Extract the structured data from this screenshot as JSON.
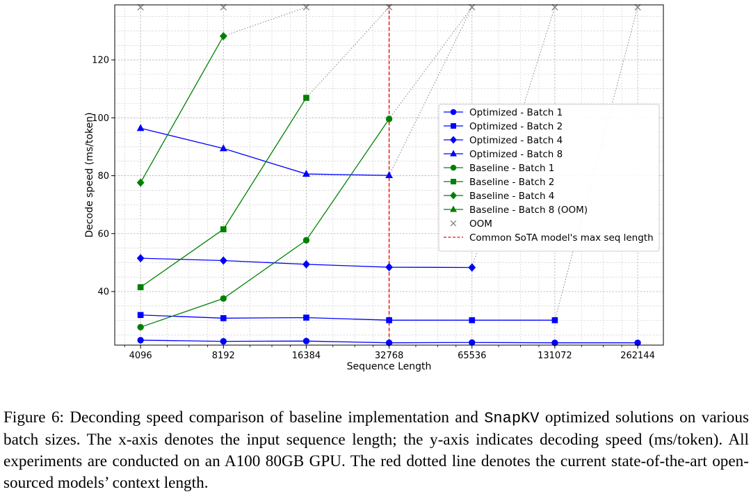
{
  "chart_data": {
    "type": "line",
    "xlabel": "Sequence Length",
    "ylabel": "Decode speed (ms/token)",
    "x_scale": "log2",
    "x_ticks": [
      4096,
      8192,
      16384,
      32768,
      65536,
      131072,
      262144
    ],
    "x_tick_labels": [
      "4096",
      "8192",
      "16384",
      "32768",
      "65536",
      "131072",
      "262144"
    ],
    "y_ticks": [
      40,
      60,
      80,
      100,
      120
    ],
    "y_tick_labels": [
      "40",
      "60",
      "80",
      "100",
      "120"
    ],
    "xlim": [
      3300,
      325000
    ],
    "ylim": [
      21.5,
      139
    ],
    "grid": true,
    "legend_position": "center-right",
    "series": [
      {
        "name": "Optimized - Batch 1",
        "color": "#0000ff",
        "marker": "circle",
        "style": "solid",
        "x": [
          4096,
          8192,
          16384,
          32768,
          65536,
          131072,
          262144
        ],
        "y": [
          23.2,
          22.8,
          22.9,
          22.3,
          22.4,
          22.3,
          22.3
        ]
      },
      {
        "name": "Optimized - Batch 2",
        "color": "#0000ff",
        "marker": "square",
        "style": "solid",
        "x": [
          4096,
          8192,
          16384,
          32768,
          65536,
          131072
        ],
        "y": [
          31.9,
          30.8,
          31.0,
          30.1,
          30.1,
          30.1
        ]
      },
      {
        "name": "Optimized - Batch 4",
        "color": "#0000ff",
        "marker": "diamond",
        "style": "solid",
        "x": [
          4096,
          8192,
          16384,
          32768,
          65536
        ],
        "y": [
          51.5,
          50.7,
          49.4,
          48.4,
          48.3
        ]
      },
      {
        "name": "Optimized - Batch 8",
        "color": "#0000ff",
        "marker": "triangle",
        "style": "solid",
        "x": [
          4096,
          8192,
          16384,
          32768
        ],
        "y": [
          96.4,
          89.4,
          80.6,
          80.1
        ]
      },
      {
        "name": "Baseline - Batch 1",
        "color": "#008000",
        "marker": "circle",
        "style": "solid",
        "x": [
          4096,
          8192,
          16384,
          32768
        ],
        "y": [
          27.7,
          37.6,
          57.7,
          99.6
        ]
      },
      {
        "name": "Baseline - Batch 2",
        "color": "#008000",
        "marker": "square",
        "style": "solid",
        "x": [
          4096,
          8192,
          16384
        ],
        "y": [
          41.5,
          61.5,
          106.9
        ]
      },
      {
        "name": "Baseline - Batch 4",
        "color": "#008000",
        "marker": "diamond",
        "style": "solid",
        "x": [
          4096,
          8192
        ],
        "y": [
          77.6,
          128.2
        ]
      },
      {
        "name": "Baseline - Batch 8 (OOM)",
        "color": "#008000",
        "marker": "triangle",
        "style": "solid",
        "x": [],
        "y": []
      },
      {
        "name": "OOM",
        "color": "#808080",
        "marker": "x",
        "style": "none",
        "x": [
          4096,
          8192,
          16384,
          32768,
          65536,
          131072,
          262144
        ],
        "y": [
          138.2,
          138.2,
          138.2,
          138.2,
          138.2,
          138.2,
          138.2
        ]
      }
    ],
    "oom_connectors": [
      {
        "from": [
          8192,
          128.2
        ],
        "to": [
          16384,
          138.2
        ]
      },
      {
        "from": [
          16384,
          106.9
        ],
        "to": [
          32768,
          138.2
        ]
      },
      {
        "from": [
          32768,
          99.6
        ],
        "to": [
          65536,
          138.2
        ]
      },
      {
        "from": [
          32768,
          80.1
        ],
        "to": [
          65536,
          138.2
        ]
      },
      {
        "from": [
          65536,
          48.3
        ],
        "to": [
          131072,
          138.2
        ]
      },
      {
        "from": [
          131072,
          30.1
        ],
        "to": [
          262144,
          138.2
        ]
      }
    ],
    "vline": {
      "x": 32768,
      "color": "#ff0000",
      "style": "dashed",
      "name": "Common SoTA model's max seq length"
    },
    "legend": [
      {
        "label": "Optimized - Batch 1",
        "color": "#0000ff",
        "marker": "circle",
        "line": "solid"
      },
      {
        "label": "Optimized - Batch 2",
        "color": "#0000ff",
        "marker": "square",
        "line": "solid"
      },
      {
        "label": "Optimized - Batch 4",
        "color": "#0000ff",
        "marker": "diamond",
        "line": "solid"
      },
      {
        "label": "Optimized - Batch 8",
        "color": "#0000ff",
        "marker": "triangle",
        "line": "solid"
      },
      {
        "label": "Baseline - Batch 1",
        "color": "#008000",
        "marker": "circle",
        "line": "solid"
      },
      {
        "label": "Baseline - Batch 2",
        "color": "#008000",
        "marker": "square",
        "line": "solid"
      },
      {
        "label": "Baseline - Batch 4",
        "color": "#008000",
        "marker": "diamond",
        "line": "solid"
      },
      {
        "label": "Baseline - Batch 8 (OOM)",
        "color": "#008000",
        "marker": "triangle",
        "line": "solid"
      },
      {
        "label": "OOM",
        "color": "#808080",
        "marker": "x",
        "line": "none"
      },
      {
        "label": "Common SoTA model's max seq length",
        "color": "#ff0000",
        "marker": "none",
        "line": "dashed"
      }
    ]
  },
  "caption": {
    "part1": "Figure 6: Deconding speed comparison of baseline implementation and ",
    "code": "SnapKV",
    "part2": " optimized solutions on various batch sizes. The x-axis denotes the input sequence length; the y-axis indicates decoding speed (ms/token). All experiments are conducted on an A100 80GB GPU. The red dotted line denotes the current state-of-the-art open-sourced models’ context length."
  }
}
